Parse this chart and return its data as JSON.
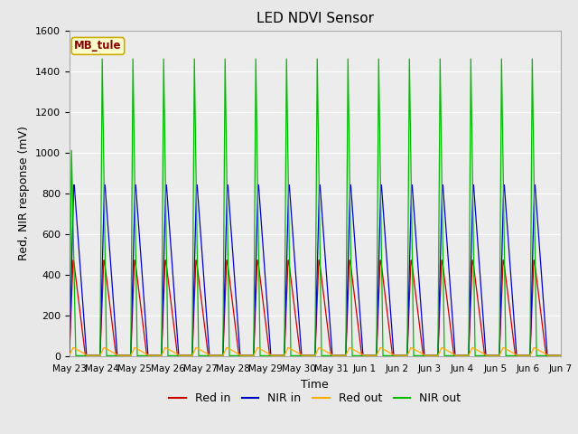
{
  "title": "LED NDVI Sensor",
  "xlabel": "Time",
  "ylabel": "Red, NIR response (mV)",
  "annotation": "MB_tule",
  "annotation_bg": "#ffffcc",
  "annotation_border": "#ccaa00",
  "annotation_text_color": "#880000",
  "ylim": [
    0,
    1600
  ],
  "yticks": [
    0,
    200,
    400,
    600,
    800,
    1000,
    1200,
    1400,
    1600
  ],
  "x_tick_labels": [
    "May 23",
    "May 24",
    "May 25",
    "May 26",
    "May 27",
    "May 28",
    "May 29",
    "May 30",
    "May 31",
    "Jun 1",
    "Jun 2",
    "Jun 3",
    "Jun 4",
    "Jun 5",
    "Jun 6",
    "Jun 7"
  ],
  "background_color": "#e8e8e8",
  "plot_bg_color": "#ececec",
  "grid_color": "#ffffff",
  "colors": {
    "red_in": "#cc0000",
    "nir_in": "#0000cc",
    "red_out": "#ffaa00",
    "nir_out": "#00bb00"
  },
  "legend_labels": [
    "Red in",
    "NIR in",
    "Red out",
    "NIR out"
  ],
  "n_cycles": 16,
  "red_in_peak": 470,
  "nir_in_peak": 840,
  "red_out_peak": 40,
  "nir_out_peak": 1460,
  "nir_out_first_peak": 1010
}
